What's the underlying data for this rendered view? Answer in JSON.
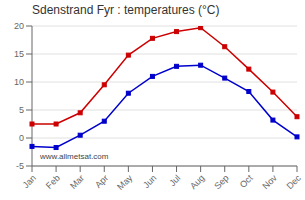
{
  "chart_data": {
    "type": "line",
    "title": "Sdenstrand Fyr : temperatures (°C)",
    "categories": [
      "Jan",
      "Feb",
      "Mar",
      "Apr",
      "May",
      "Jun",
      "Jul",
      "Aug",
      "Sep",
      "Oct",
      "Nov",
      "Dec"
    ],
    "series": [
      {
        "color": "#cc0000",
        "values": [
          2.5,
          2.5,
          4.5,
          9.5,
          14.8,
          17.8,
          19.0,
          19.7,
          16.3,
          12.3,
          8.2,
          3.8
        ]
      },
      {
        "color": "#0000cc",
        "values": [
          -1.5,
          -1.7,
          0.5,
          3.0,
          8.0,
          11.0,
          12.8,
          13.0,
          10.7,
          8.3,
          3.2,
          0.2
        ]
      }
    ],
    "ylim": [
      -5,
      20
    ],
    "yticks": [
      -5,
      0,
      5,
      10,
      15,
      20
    ],
    "grid": true,
    "marker": "square",
    "line_style": "solid",
    "annotations": [
      "www.allmetsat.com"
    ]
  }
}
